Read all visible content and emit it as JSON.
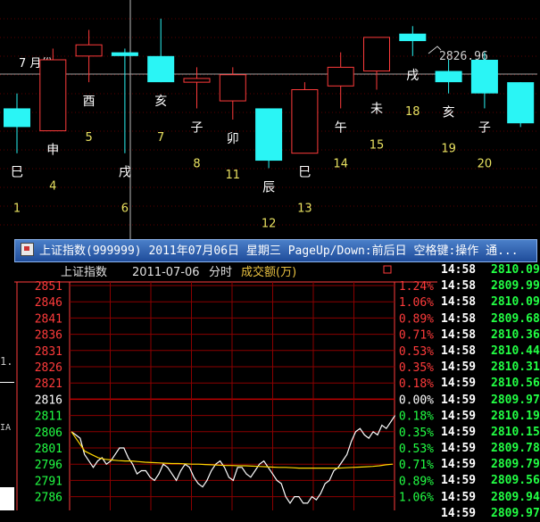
{
  "kline": {
    "guide_price": "2826.96",
    "month_label": "7 月份",
    "candles": [
      {
        "branch": "巳",
        "day": "1",
        "open": 2806,
        "close": 2811,
        "high": 2815,
        "low": 2799,
        "color": "cyan"
      },
      {
        "branch": "申",
        "day": "4",
        "open": 2805,
        "close": 2824,
        "high": 2827,
        "low": 2805,
        "color": "red"
      },
      {
        "branch": "酉",
        "day": "5",
        "open": 2825,
        "close": 2828,
        "high": 2832,
        "low": 2818,
        "color": "red"
      },
      {
        "branch": "戌",
        "day": "6",
        "open": 2826,
        "close": 2825,
        "high": 2827,
        "low": 2799,
        "color": "cyan"
      },
      {
        "branch": "亥",
        "day": "7",
        "open": 2825,
        "close": 2818,
        "high": 2835,
        "low": 2818,
        "color": "cyan"
      },
      {
        "branch": "子",
        "day": "8",
        "open": 2818,
        "close": 2819,
        "high": 2822,
        "low": 2811,
        "color": "red"
      },
      {
        "branch": "卯",
        "day": "11",
        "open": 2813,
        "close": 2820,
        "high": 2822,
        "low": 2808,
        "color": "red"
      },
      {
        "branch": "辰",
        "day": "12",
        "open": 2811,
        "close": 2797,
        "high": 2811,
        "low": 2795,
        "color": "cyan"
      },
      {
        "branch": "巳",
        "day": "13",
        "open": 2799,
        "close": 2816,
        "high": 2818,
        "low": 2799,
        "color": "red"
      },
      {
        "branch": "午",
        "day": "14",
        "open": 2817,
        "close": 2822,
        "high": 2826,
        "low": 2811,
        "color": "red"
      },
      {
        "branch": "未",
        "day": "15",
        "open": 2821,
        "close": 2830,
        "high": 2830,
        "low": 2816,
        "color": "red"
      },
      {
        "branch": "戌",
        "day": "18",
        "open": 2831,
        "close": 2829,
        "high": 2833,
        "low": 2825,
        "color": "cyan"
      },
      {
        "branch": "亥",
        "day": "19",
        "open": 2821,
        "close": 2818,
        "high": 2824,
        "low": 2815,
        "color": "cyan"
      },
      {
        "branch": "子",
        "day": "20",
        "open": 2824,
        "close": 2815,
        "high": 2826,
        "low": 2811,
        "color": "cyan"
      },
      {
        "branch": "",
        "day": "",
        "open": 2818,
        "close": 2807,
        "high": 2818,
        "low": 2806,
        "color": "cyan"
      }
    ],
    "left_tab_label": "1.",
    "left_tab_label2": "IA"
  },
  "window": {
    "title": "上证指数(999999) 2011年07月06日 星期三 PageUp/Down:前后日 空格键:操作 通..."
  },
  "intraday": {
    "header": {
      "name": "上证指数",
      "date": "2011-07-06",
      "mode": "分时",
      "volume_label": "成交额(万)"
    },
    "price_levels": [
      "2851",
      "2846",
      "2841",
      "2836",
      "2831",
      "2826",
      "2821",
      "2816",
      "2811",
      "2806",
      "2801",
      "2796",
      "2791",
      "2786"
    ],
    "pct_levels": [
      "1.24%",
      "1.06%",
      "0.89%",
      "0.71%",
      "0.53%",
      "0.35%",
      "0.18%",
      "0.00%",
      "0.18%",
      "0.35%",
      "0.53%",
      "0.71%",
      "0.89%",
      "1.06%"
    ],
    "colors": {
      "up": "#ff3b3b",
      "down": "#22ff44",
      "flat": "#ffffff",
      "grid": "#8b0000",
      "avg": "#ffd700",
      "price": "#ffffff"
    },
    "chart_data": {
      "type": "line",
      "ylim": [
        2784,
        2853
      ],
      "series": [
        {
          "name": "",
          "values": [
            2806,
            2805,
            2804,
            2799,
            2797,
            2795,
            2797,
            2798,
            2796,
            2797,
            2799,
            2801,
            2801,
            2798,
            2796,
            2793,
            2794,
            2794,
            2792,
            2791,
            2793,
            2796,
            2795,
            2793,
            2791,
            2794,
            2796,
            2795,
            2792,
            2790,
            2789,
            2791,
            2794,
            2796,
            2797,
            2795,
            2792,
            2791,
            2795,
            2795,
            2793,
            2792,
            2794,
            2796,
            2797,
            2795,
            2793,
            2791,
            2790,
            2786,
            2784,
            2786,
            2786,
            2784,
            2784,
            2786,
            2785,
            2787,
            2790,
            2791,
            2794,
            2795,
            2797,
            2799,
            2803,
            2806,
            2807,
            2805,
            2804,
            2806,
            2805,
            2808,
            2807,
            2809,
            2811
          ]
        },
        {
          "name": "",
          "values": [
            2806,
            2803,
            2800,
            2799,
            2798,
            2797.5,
            2797.3,
            2797.1,
            2797,
            2797,
            2796.8,
            2796.6,
            2796.5,
            2796.4,
            2796.3,
            2796.2,
            2796.2,
            2796.1,
            2796,
            2796,
            2795.9,
            2795.8,
            2795.7,
            2795.6,
            2795.6,
            2795.5,
            2795.5,
            2795.4,
            2795.3,
            2795.2,
            2795.1,
            2795,
            2795,
            2794.9,
            2794.8,
            2794.8,
            2794.8,
            2794.8,
            2794.8,
            2794.8,
            2794.8,
            2794.9,
            2795,
            2795.1,
            2795.2,
            2795.3,
            2795.5,
            2795.8,
            2796
          ]
        }
      ]
    }
  },
  "ticks": [
    {
      "time": "14:58",
      "price": "2810.09"
    },
    {
      "time": "14:58",
      "price": "2809.99"
    },
    {
      "time": "14:58",
      "price": "2810.09"
    },
    {
      "time": "14:58",
      "price": "2809.68"
    },
    {
      "time": "14:58",
      "price": "2810.36"
    },
    {
      "time": "14:58",
      "price": "2810.44"
    },
    {
      "time": "14:59",
      "price": "2810.31"
    },
    {
      "time": "14:59",
      "price": "2810.56"
    },
    {
      "time": "14:59",
      "price": "2809.97"
    },
    {
      "time": "14:59",
      "price": "2810.19"
    },
    {
      "time": "14:59",
      "price": "2810.15"
    },
    {
      "time": "14:59",
      "price": "2809.78"
    },
    {
      "time": "14:59",
      "price": "2809.79"
    },
    {
      "time": "14:59",
      "price": "2809.56"
    },
    {
      "time": "14:59",
      "price": "2809.94"
    },
    {
      "time": "14:59",
      "price": "2809.97"
    }
  ]
}
